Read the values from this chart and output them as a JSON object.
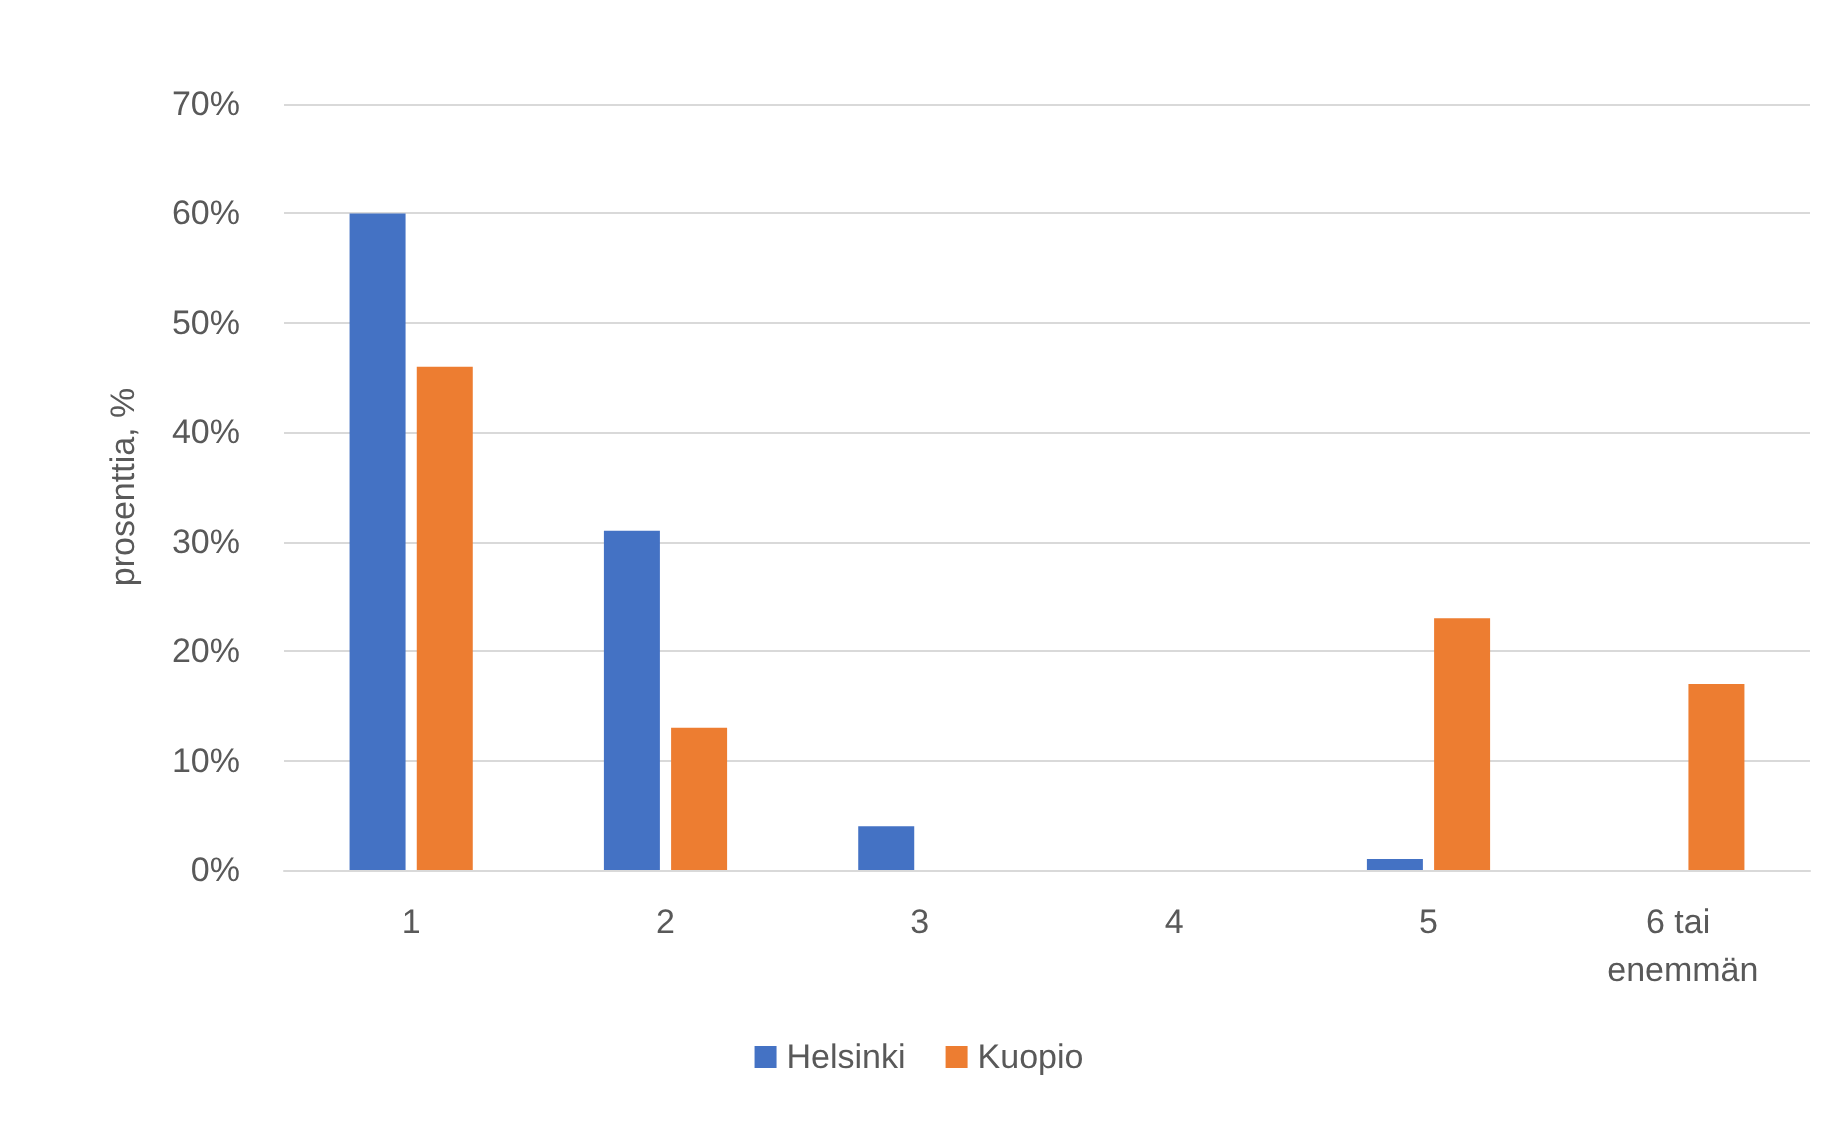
{
  "chart_data": {
    "type": "bar",
    "ylabel": "prosenttia, %",
    "categories": [
      "1",
      "2",
      "3",
      "4",
      "5",
      "6 tai enemmän"
    ],
    "series": [
      {
        "name": "Helsinki",
        "color": "#4472c4",
        "values": [
          60,
          31,
          4,
          0,
          1,
          0
        ]
      },
      {
        "name": "Kuopio",
        "color": "#ed7d31",
        "values": [
          46,
          13,
          0,
          0,
          23,
          17
        ]
      }
    ],
    "ylim": [
      0,
      70
    ],
    "yticks": [
      {
        "value": 0,
        "label": "0%"
      },
      {
        "value": 10,
        "label": "10%"
      },
      {
        "value": 20,
        "label": "20%"
      },
      {
        "value": 30,
        "label": "30%"
      },
      {
        "value": 40,
        "label": "40%"
      },
      {
        "value": 50,
        "label": "50%"
      },
      {
        "value": 60,
        "label": "60%"
      },
      {
        "value": 70,
        "label": "70%"
      }
    ],
    "grid": "y",
    "legend": "bottom"
  }
}
